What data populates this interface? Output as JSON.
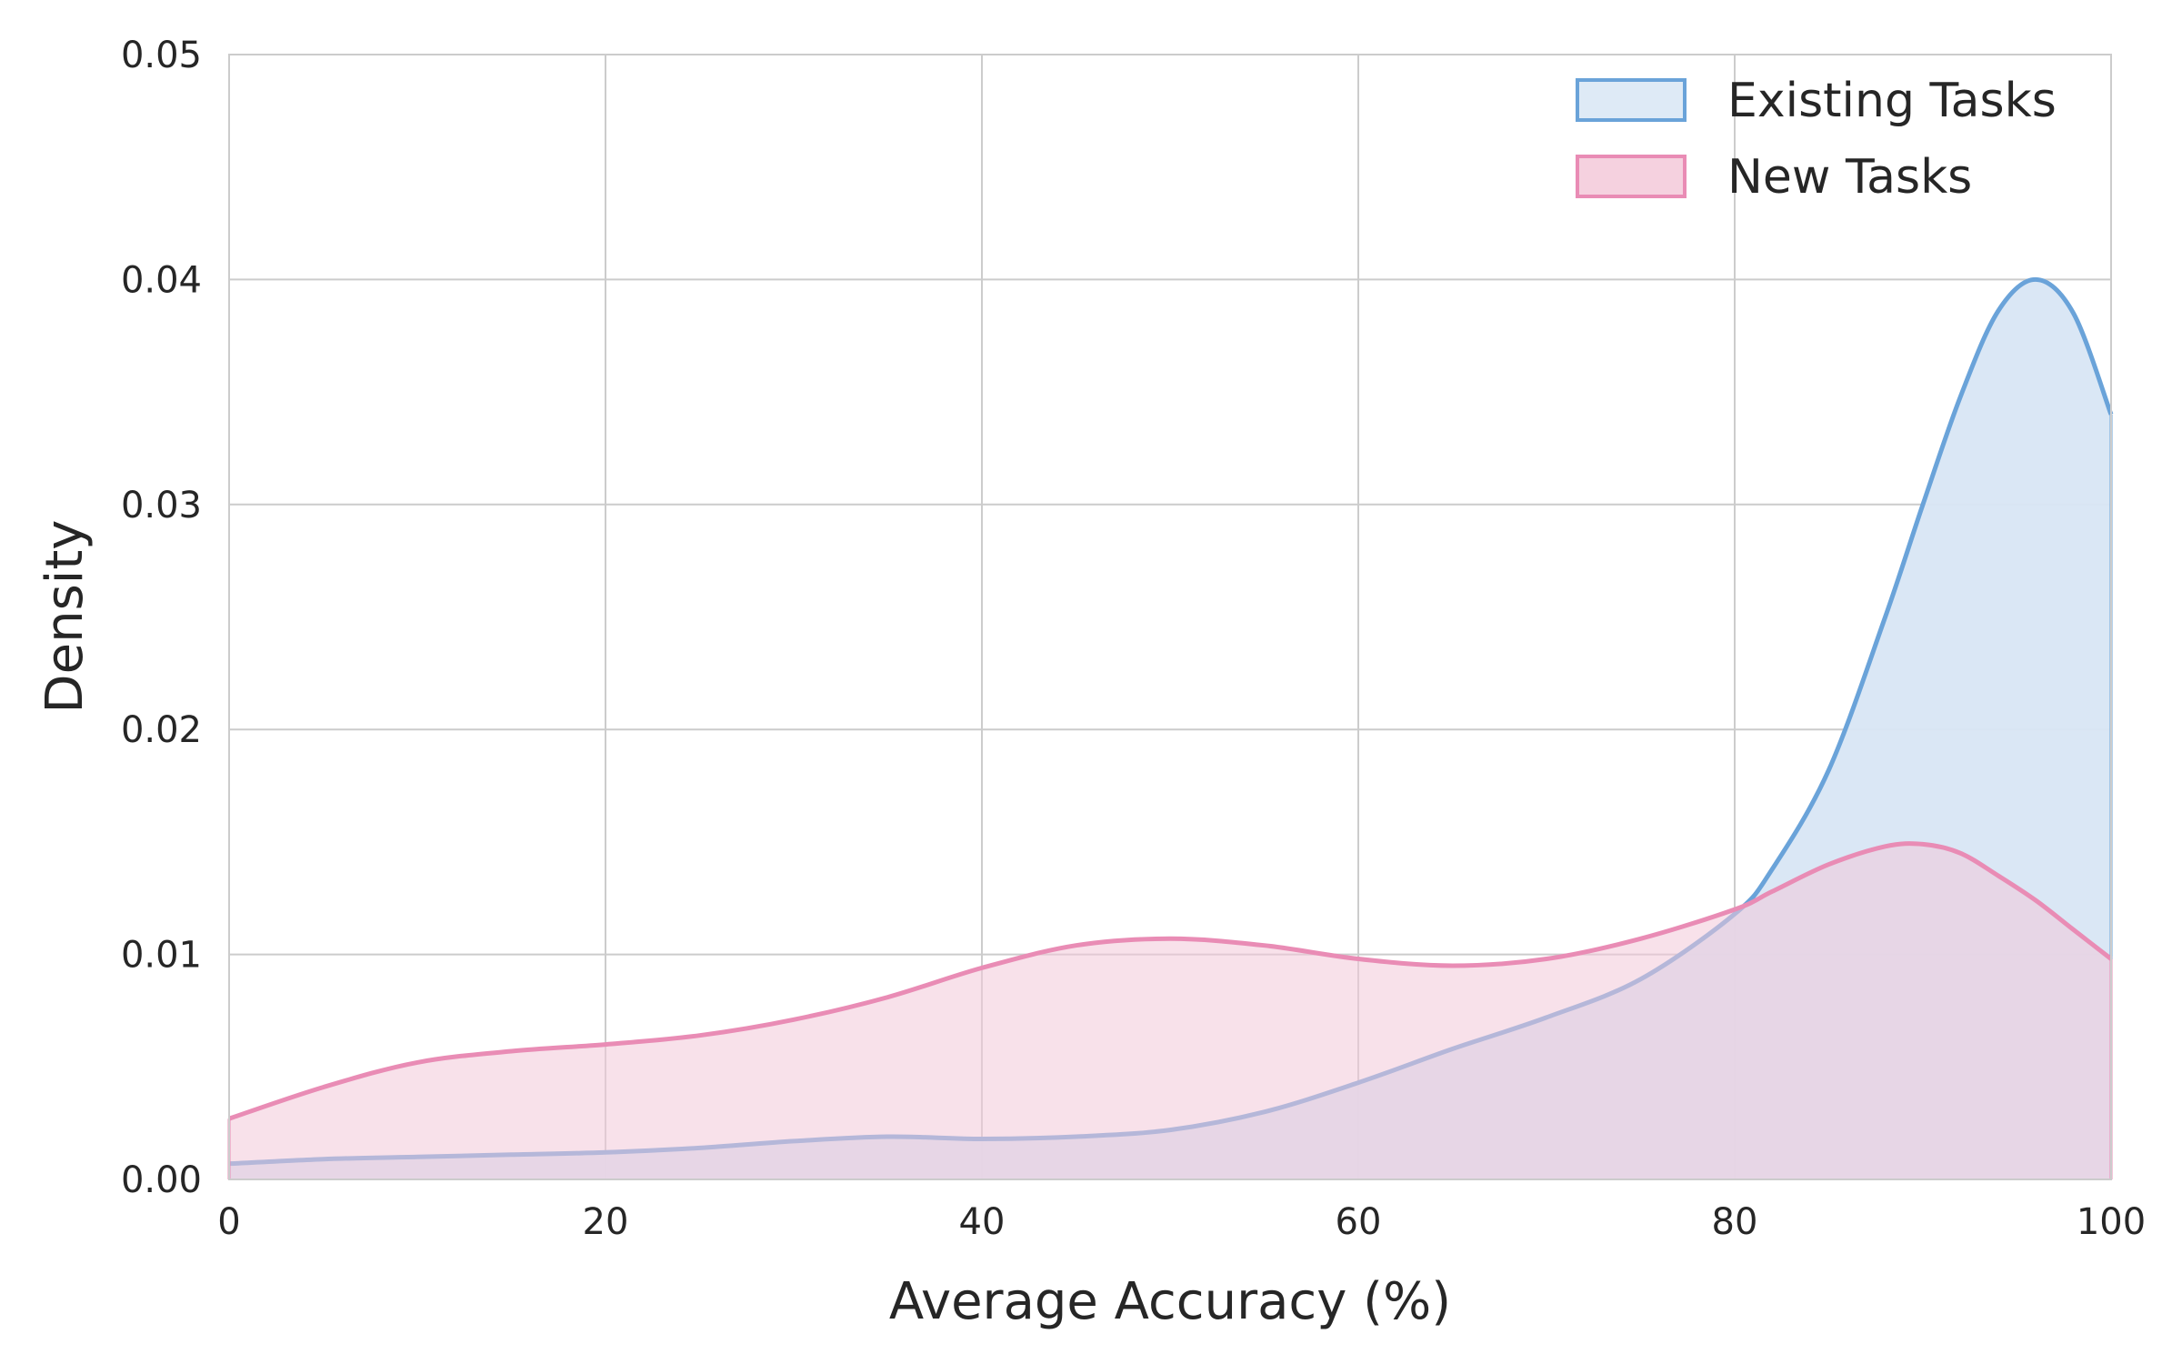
{
  "chart_data": {
    "type": "area",
    "xlabel": "Average Accuracy (%)",
    "ylabel": "Density",
    "xlim": [
      0,
      100
    ],
    "ylim": [
      0,
      0.05
    ],
    "xticks": [
      "0",
      "20",
      "40",
      "60",
      "80",
      "100"
    ],
    "yticks": [
      "0.00",
      "0.01",
      "0.02",
      "0.03",
      "0.04",
      "0.05"
    ],
    "grid": true,
    "legend_position": "top-right",
    "x": [
      0,
      5,
      10,
      15,
      20,
      25,
      30,
      35,
      40,
      45,
      50,
      55,
      60,
      65,
      70,
      75,
      80,
      82,
      85,
      88,
      90,
      92,
      94,
      96,
      98,
      100
    ],
    "series": [
      {
        "name": "Existing Tasks",
        "color": "#6aa3d9",
        "fill": "#d8e6f4",
        "values": [
          0.0007,
          0.0009,
          0.001,
          0.0011,
          0.0012,
          0.0014,
          0.0017,
          0.0019,
          0.0018,
          0.0019,
          0.0022,
          0.003,
          0.0043,
          0.0058,
          0.0072,
          0.0089,
          0.0118,
          0.0138,
          0.0182,
          0.025,
          0.03,
          0.0348,
          0.0386,
          0.04,
          0.0385,
          0.034
        ]
      },
      {
        "name": "New Tasks",
        "color": "#e98cb5",
        "fill": "#f3c9d9",
        "values": [
          0.0027,
          0.0041,
          0.0052,
          0.0057,
          0.006,
          0.0064,
          0.0071,
          0.0081,
          0.0094,
          0.0104,
          0.0107,
          0.0104,
          0.0098,
          0.0095,
          0.0098,
          0.0107,
          0.012,
          0.0128,
          0.014,
          0.0148,
          0.0149,
          0.0145,
          0.0135,
          0.0124,
          0.0111,
          0.0098
        ]
      }
    ]
  }
}
